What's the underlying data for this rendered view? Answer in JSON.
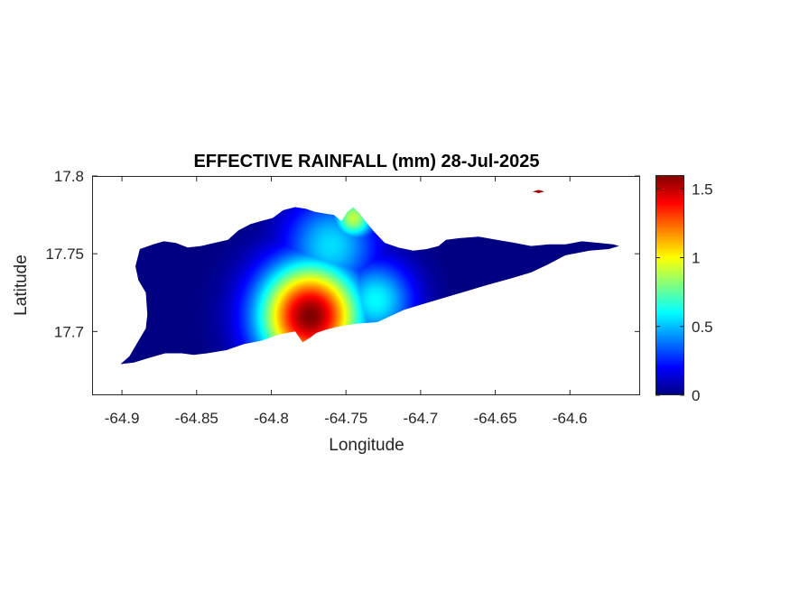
{
  "chart_data": {
    "type": "heatmap",
    "title": "EFFECTIVE RAINFALL (mm) 28-Jul-2025",
    "xlabel": "Longitude",
    "ylabel": "Latitude",
    "xlim": [
      -64.92,
      -64.553
    ],
    "ylim": [
      17.659,
      17.8
    ],
    "x_ticks": [
      -64.9,
      -64.85,
      -64.8,
      -64.75,
      -64.7,
      -64.65,
      -64.6
    ],
    "x_tick_labels": [
      "-64.9",
      "-64.85",
      "-64.8",
      "-64.75",
      "-64.7",
      "-64.65",
      "-64.6"
    ],
    "y_ticks": [
      17.7,
      17.75,
      17.8
    ],
    "y_tick_labels": [
      "17.7",
      "17.75",
      "17.8"
    ],
    "colorbar": {
      "colormap": "jet",
      "range": [
        0,
        1.6
      ],
      "ticks": [
        0,
        0.5,
        1,
        1.5
      ],
      "tick_labels": [
        "0",
        "0.5",
        "1",
        "1.5"
      ]
    },
    "field": {
      "background": 0,
      "peaks": [
        {
          "lon": -64.774,
          "lat": 17.71,
          "value": 1.6,
          "radius": 0.024
        },
        {
          "lon": -64.76,
          "lat": 17.755,
          "value": 0.55,
          "radius": 0.022
        },
        {
          "lon": -64.745,
          "lat": 17.773,
          "value": 0.9,
          "radius": 0.01
        },
        {
          "lon": -64.73,
          "lat": 17.72,
          "value": 0.6,
          "radius": 0.018
        }
      ]
    },
    "island_outline": [
      [
        -64.901,
        17.679
      ],
      [
        -64.895,
        17.684
      ],
      [
        -64.889,
        17.694
      ],
      [
        -64.884,
        17.702
      ],
      [
        -64.883,
        17.711
      ],
      [
        -64.884,
        17.725
      ],
      [
        -64.889,
        17.733
      ],
      [
        -64.891,
        17.742
      ],
      [
        -64.888,
        17.753
      ],
      [
        -64.879,
        17.756
      ],
      [
        -64.872,
        17.758
      ],
      [
        -64.864,
        17.757
      ],
      [
        -64.856,
        17.754
      ],
      [
        -64.847,
        17.755
      ],
      [
        -64.838,
        17.757
      ],
      [
        -64.829,
        17.759
      ],
      [
        -64.822,
        17.765
      ],
      [
        -64.814,
        17.769
      ],
      [
        -64.807,
        17.771
      ],
      [
        -64.799,
        17.773
      ],
      [
        -64.792,
        17.778
      ],
      [
        -64.784,
        17.78
      ],
      [
        -64.777,
        17.779
      ],
      [
        -64.771,
        17.777
      ],
      [
        -64.765,
        17.776
      ],
      [
        -64.758,
        17.775
      ],
      [
        -64.753,
        17.771
      ],
      [
        -64.749,
        17.777
      ],
      [
        -64.745,
        17.78
      ],
      [
        -64.741,
        17.776
      ],
      [
        -64.737,
        17.771
      ],
      [
        -64.731,
        17.764
      ],
      [
        -64.724,
        17.757
      ],
      [
        -64.715,
        17.754
      ],
      [
        -64.705,
        17.752
      ],
      [
        -64.696,
        17.753
      ],
      [
        -64.688,
        17.755
      ],
      [
        -64.683,
        17.759
      ],
      [
        -64.674,
        17.76
      ],
      [
        -64.661,
        17.761
      ],
      [
        -64.649,
        17.759
      ],
      [
        -64.637,
        17.757
      ],
      [
        -64.626,
        17.755
      ],
      [
        -64.614,
        17.756
      ],
      [
        -64.603,
        17.756
      ],
      [
        -64.592,
        17.758
      ],
      [
        -64.581,
        17.757
      ],
      [
        -64.571,
        17.756
      ],
      [
        -64.567,
        17.755
      ],
      [
        -64.574,
        17.753
      ],
      [
        -64.587,
        17.752
      ],
      [
        -64.603,
        17.749
      ],
      [
        -64.615,
        17.743
      ],
      [
        -64.626,
        17.738
      ],
      [
        -64.64,
        17.734
      ],
      [
        -64.655,
        17.73
      ],
      [
        -64.669,
        17.726
      ],
      [
        -64.683,
        17.722
      ],
      [
        -64.697,
        17.718
      ],
      [
        -64.711,
        17.714
      ],
      [
        -64.72,
        17.71
      ],
      [
        -64.729,
        17.706
      ],
      [
        -64.743,
        17.705
      ],
      [
        -64.756,
        17.703
      ],
      [
        -64.764,
        17.701
      ],
      [
        -64.77,
        17.699
      ],
      [
        -64.774,
        17.696
      ],
      [
        -64.779,
        17.693
      ],
      [
        -64.784,
        17.7
      ],
      [
        -64.795,
        17.698
      ],
      [
        -64.807,
        17.694
      ],
      [
        -64.818,
        17.692
      ],
      [
        -64.83,
        17.688
      ],
      [
        -64.843,
        17.686
      ],
      [
        -64.852,
        17.685
      ],
      [
        -64.86,
        17.686
      ],
      [
        -64.871,
        17.686
      ],
      [
        -64.882,
        17.683
      ],
      [
        -64.892,
        17.68
      ],
      [
        -64.901,
        17.679
      ]
    ],
    "islet_outline": [
      [
        -64.625,
        17.79
      ],
      [
        -64.621,
        17.791
      ],
      [
        -64.617,
        17.79
      ],
      [
        -64.621,
        17.789
      ],
      [
        -64.625,
        17.79
      ]
    ]
  }
}
